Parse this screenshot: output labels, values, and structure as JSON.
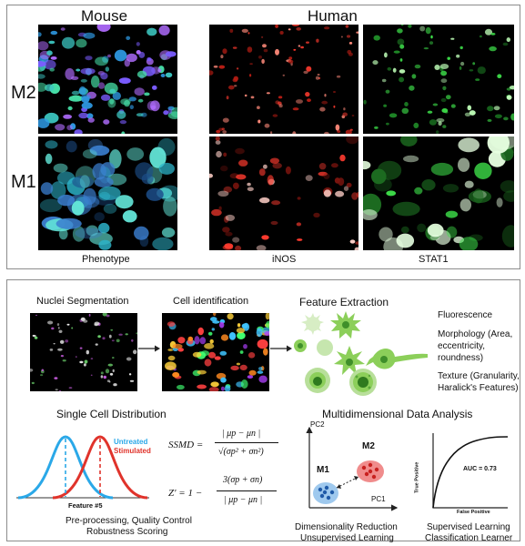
{
  "top_panel": {
    "headers": {
      "mouse": "Mouse",
      "human": "Human"
    },
    "row_labels": {
      "m2": "M2",
      "m1": "M1"
    },
    "column_captions": {
      "phenotype": "Phenotype",
      "inos": "iNOS",
      "stat1": "STAT1"
    }
  },
  "workflow": {
    "steps": {
      "segmentation": "Nuclei Segmentation",
      "identification": "Cell identification",
      "feature_extraction": "Feature Extraction"
    },
    "features": {
      "fluorescence": "Fluorescence",
      "morphology": [
        "Morphology (Area,",
        "eccentricity,",
        "roundness)"
      ],
      "texture": [
        "Texture (Granularity,",
        "Haralick's Features)"
      ]
    },
    "distribution": {
      "title": "Single Cell Distribution",
      "legend_untreated": "Untreated",
      "legend_stimulated": "Stimulated",
      "xlabel": "Feature #5",
      "caption": [
        "Pre-processing,  Quality Control",
        "Robustness Scoring"
      ]
    },
    "formulas": {
      "ssmd_lhs": "SSMD =",
      "ssmd_num": "| μp − μn |",
      "ssmd_den": "√(σp² + σn²)",
      "z_lhs": "Z′ = 1 −",
      "z_num": "3(σp + σn)",
      "z_den": "| μp − μn |"
    },
    "multidim": {
      "title": "Multidimensional Data Analysis",
      "pc2": "PC2",
      "pc1": "PC1",
      "m1": "M1",
      "m2": "M2",
      "caption_dr": [
        "Dimensionality Reduction",
        "Unsupervised Learning"
      ],
      "auc": "AUC = 0.73",
      "roc_ylabel": "True Positive",
      "roc_xlabel": "False Positive",
      "caption_sl": [
        "Supervised Learning",
        "Classification Learner"
      ]
    }
  },
  "colors": {
    "untreated": "#2aa8e8",
    "stimulated": "#e0332b",
    "inos": "#e8362a",
    "stat1": "#3ee04a",
    "cell_green": "#8ccf5a",
    "m1_cluster": "#9fc9ee",
    "m2_cluster": "#f08c8c"
  }
}
